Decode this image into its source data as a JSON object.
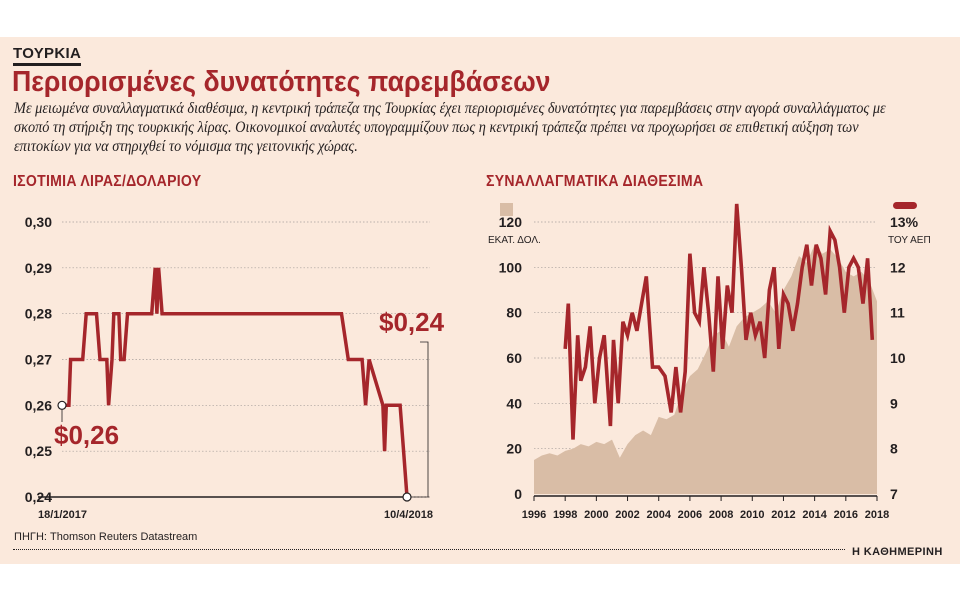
{
  "section_tag": "ΤΟΥΡΚΙΑ",
  "headline": "Περιορισμένες δυνατότητες παρεμβάσεων",
  "standfirst": "Με μειωμένα συναλλαγματικά διαθέσιμα, η κεντρική τράπεζα της Τουρκίας έχει περιορισμένες δυνατότητες για παρεμβάσεις στην αγορά συναλλάγματος με σκοπό τη στήριξη της τουρκικής λίρας. Οικονομικοί αναλυτές υπογραμμίζουν πως η κεντρική τράπεζα πρέπει να προχωρήσει σε επιθετική αύξηση των επιτοκίων για να στηριχθεί το νόμισμα της γειτονικής χώρας.",
  "source": "ΠΗΓΗ: Thomson Reuters Datastream",
  "brand": "Η ΚΑΘΗΜΕΡΙΝΗ",
  "colors": {
    "accent": "#a5262b",
    "area": "#d9bda6",
    "panel": "#fbe9dc",
    "text": "#231f20"
  },
  "chart_data": [
    {
      "type": "line",
      "title": "ΙΣΟΤΙΜΙΑ ΛΙΡΑΣ/ΔΟΛΑΡΙΟΥ",
      "ylim": [
        0.24,
        0.3
      ],
      "yticks": [
        "0,30",
        "0,29",
        "0,28",
        "0,27",
        "0,26",
        "0,25",
        "0,24"
      ],
      "x_start_label": "18/1/2017",
      "x_end_label": "10/4/2018",
      "start_annotation": "$0,26",
      "end_annotation": "$0,24",
      "grid": true,
      "x": [
        0,
        0.02,
        0.025,
        0.06,
        0.07,
        0.1,
        0.11,
        0.13,
        0.135,
        0.145,
        0.15,
        0.165,
        0.17,
        0.18,
        0.19,
        0.22,
        0.26,
        0.27,
        0.275,
        0.28,
        0.29,
        0.3,
        0.35,
        0.6,
        0.65,
        0.67,
        0.68,
        0.69,
        0.7,
        0.72,
        0.74,
        0.745,
        0.75,
        0.78,
        0.79,
        0.8,
        0.81,
        0.83,
        0.87,
        0.88,
        0.89,
        0.93,
        0.935,
        0.94,
        0.95,
        0.96,
        0.97,
        0.98,
        0.99,
        1.0
      ],
      "values": [
        0.26,
        0.26,
        0.27,
        0.27,
        0.28,
        0.28,
        0.27,
        0.27,
        0.26,
        0.27,
        0.28,
        0.28,
        0.27,
        0.27,
        0.28,
        0.28,
        0.28,
        0.29,
        0.28,
        0.29,
        0.28,
        0.28,
        0.28,
        0.28,
        0.28,
        0.28,
        0.28,
        0.28,
        0.28,
        0.28,
        0.28,
        0.28,
        0.28,
        0.28,
        0.28,
        0.28,
        0.28,
        0.27,
        0.27,
        0.26,
        0.27,
        0.26,
        0.25,
        0.26,
        0.26,
        0.26,
        0.26,
        0.26,
        0.25,
        0.24
      ]
    },
    {
      "type": "area+line",
      "title": "ΣΥΝΑΛΛΑΓΜΑΤΙΚΑ ΔΙΑΘΕΣΙΜΑ",
      "x_labels": [
        "1996",
        "1998",
        "2000",
        "2002",
        "2004",
        "2006",
        "2008",
        "2010",
        "2012",
        "2014",
        "2016",
        "2018"
      ],
      "xlim": [
        1996,
        2018
      ],
      "y_left": {
        "label": "ΕΚΑΤ. ΔΟΛ.",
        "ticks": [
          "120",
          "100",
          "80",
          "60",
          "40",
          "20",
          "0"
        ],
        "lim": [
          0,
          120
        ]
      },
      "y_right": {
        "label": "ΤΟΥ ΑΕΠ",
        "ticks": [
          "13%",
          "12",
          "11",
          "10",
          "9",
          "8",
          "7"
        ],
        "lim": [
          7,
          13
        ]
      },
      "series": [
        {
          "axis": "left",
          "style": "area",
          "x": [
            1996,
            1996.5,
            1997,
            1997.5,
            1998,
            1998.5,
            1999,
            1999.5,
            2000,
            2000.5,
            2001,
            2001.5,
            2002,
            2002.5,
            2003,
            2003.5,
            2004,
            2004.5,
            2005,
            2005.5,
            2006,
            2006.5,
            2007,
            2007.5,
            2008,
            2008.5,
            2009,
            2009.5,
            2010,
            2010.5,
            2011,
            2011.5,
            2012,
            2012.5,
            2013,
            2013.5,
            2014,
            2014.5,
            2015,
            2015.5,
            2016,
            2016.5,
            2017,
            2017.5,
            2018
          ],
          "values": [
            15,
            17,
            18,
            17,
            19,
            20,
            22,
            21,
            23,
            22,
            24,
            16,
            22,
            26,
            28,
            26,
            34,
            33,
            35,
            45,
            52,
            55,
            62,
            70,
            72,
            65,
            74,
            78,
            80,
            82,
            85,
            80,
            90,
            96,
            105,
            102,
            110,
            106,
            108,
            104,
            98,
            96,
            98,
            94,
            85
          ]
        },
        {
          "axis": "right",
          "style": "line",
          "x": [
            1998,
            1998.2,
            1998.5,
            1998.8,
            1999,
            1999.3,
            1999.6,
            1999.9,
            2000.2,
            2000.5,
            2000.9,
            2001.1,
            2001.4,
            2001.7,
            2002,
            2002.3,
            2002.6,
            2002.9,
            2003.2,
            2003.6,
            2004,
            2004.4,
            2004.8,
            2005.1,
            2005.4,
            2005.7,
            2006,
            2006.3,
            2006.6,
            2006.9,
            2007.2,
            2007.5,
            2007.8,
            2008.1,
            2008.4,
            2008.7,
            2009,
            2009.3,
            2009.6,
            2009.9,
            2010.2,
            2010.5,
            2010.8,
            2011.1,
            2011.4,
            2011.7,
            2012,
            2012.3,
            2012.6,
            2012.9,
            2013.2,
            2013.5,
            2013.8,
            2014.1,
            2014.4,
            2014.7,
            2015,
            2015.3,
            2015.6,
            2015.9,
            2016.2,
            2016.5,
            2016.8,
            2017.1,
            2017.4,
            2017.7
          ],
          "values": [
            10.2,
            11.2,
            8.2,
            10.5,
            9.5,
            9.8,
            10.7,
            9.0,
            10.0,
            10.5,
            8.5,
            10.4,
            9.0,
            10.8,
            10.5,
            11.0,
            10.6,
            11.2,
            11.8,
            9.8,
            9.8,
            9.6,
            8.8,
            9.8,
            8.8,
            9.7,
            12.3,
            11.0,
            10.8,
            12.0,
            11.0,
            9.7,
            11.8,
            10.2,
            11.6,
            11.0,
            13.4,
            12.0,
            10.4,
            11.0,
            10.5,
            10.8,
            10.0,
            11.5,
            12.0,
            10.2,
            11.4,
            11.2,
            10.6,
            11.2,
            12.0,
            12.5,
            11.6,
            12.5,
            12.2,
            11.4,
            12.8,
            12.6,
            12.0,
            11.0,
            12.0,
            12.2,
            12.0,
            11.2,
            12.2,
            10.4
          ]
        }
      ]
    }
  ]
}
